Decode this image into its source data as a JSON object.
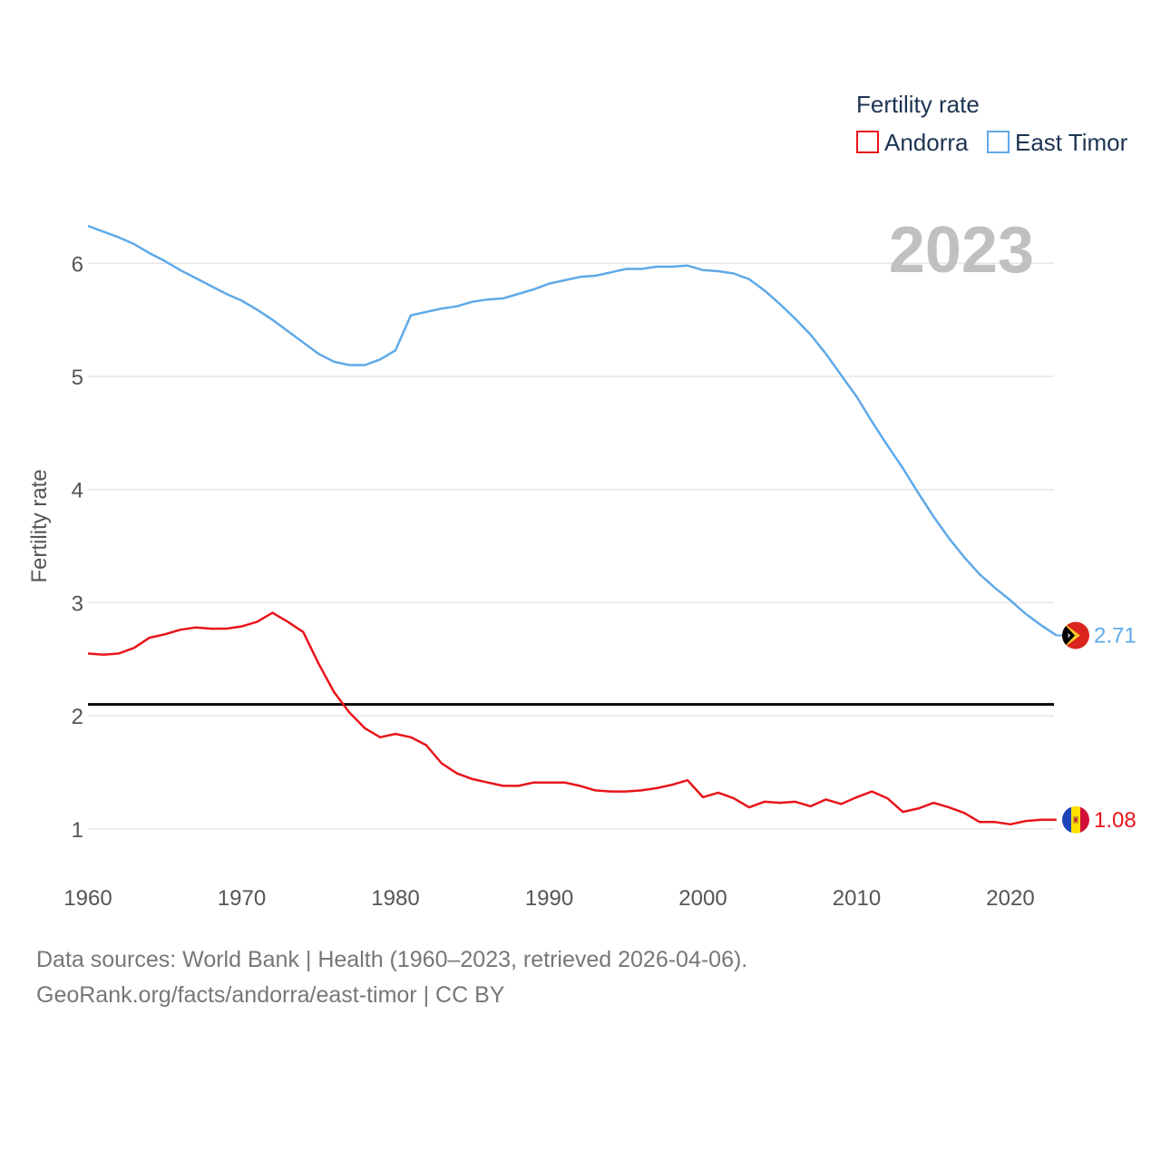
{
  "legend": {
    "title": "Fertility rate",
    "items": [
      {
        "label": "Andorra",
        "color": "#e8141b"
      },
      {
        "label": "East Timor",
        "color": "#5ea9e8"
      }
    ]
  },
  "year_label": "2023",
  "axis": {
    "ylabel": "Fertility rate",
    "yticks": [
      "1",
      "2",
      "3",
      "4",
      "5",
      "6"
    ],
    "xticks": [
      "1960",
      "1970",
      "1980",
      "1990",
      "2000",
      "2010",
      "2020"
    ]
  },
  "end_labels": {
    "east_timor": "2.71",
    "andorra": "1.08"
  },
  "footer": {
    "line1": "Data sources: World Bank | Health (1960–2023, retrieved 2026-04-06).",
    "line2": "GeoRank.org/facts/andorra/east-timor | CC BY"
  },
  "chart_data": {
    "type": "line",
    "title": "Fertility rate",
    "xlabel": "",
    "ylabel": "Fertility rate",
    "xlim": [
      1960,
      2023
    ],
    "ylim": [
      0.6,
      6.6
    ],
    "reference_line": 2.1,
    "x": [
      1960,
      1961,
      1962,
      1963,
      1964,
      1965,
      1966,
      1967,
      1968,
      1969,
      1970,
      1971,
      1972,
      1973,
      1974,
      1975,
      1976,
      1977,
      1978,
      1979,
      1980,
      1981,
      1982,
      1983,
      1984,
      1985,
      1986,
      1987,
      1988,
      1989,
      1990,
      1991,
      1992,
      1993,
      1994,
      1995,
      1996,
      1997,
      1998,
      1999,
      2000,
      2001,
      2002,
      2003,
      2004,
      2005,
      2006,
      2007,
      2008,
      2009,
      2010,
      2011,
      2012,
      2013,
      2014,
      2015,
      2016,
      2017,
      2018,
      2019,
      2020,
      2021,
      2022,
      2023
    ],
    "series": [
      {
        "name": "Andorra",
        "color": "#e8141b",
        "values": [
          2.55,
          2.54,
          2.55,
          2.6,
          2.69,
          2.72,
          2.76,
          2.78,
          2.77,
          2.77,
          2.79,
          2.83,
          2.91,
          2.83,
          2.74,
          2.46,
          2.21,
          2.03,
          1.89,
          1.81,
          1.84,
          1.81,
          1.74,
          1.58,
          1.49,
          1.44,
          1.41,
          1.38,
          1.38,
          1.41,
          1.41,
          1.41,
          1.38,
          1.34,
          1.33,
          1.33,
          1.34,
          1.36,
          1.39,
          1.43,
          1.28,
          1.32,
          1.27,
          1.19,
          1.24,
          1.23,
          1.24,
          1.2,
          1.26,
          1.22,
          1.28,
          1.33,
          1.27,
          1.15,
          1.18,
          1.23,
          1.19,
          1.14,
          1.06,
          1.06,
          1.04,
          1.07,
          1.08,
          1.08
        ]
      },
      {
        "name": "East Timor",
        "color": "#5ea9e8",
        "values": [
          6.33,
          6.28,
          6.23,
          6.17,
          6.09,
          6.02,
          5.94,
          5.87,
          5.8,
          5.73,
          5.67,
          5.59,
          5.5,
          5.4,
          5.3,
          5.2,
          5.13,
          5.1,
          5.1,
          5.15,
          5.23,
          5.54,
          5.57,
          5.6,
          5.62,
          5.66,
          5.68,
          5.69,
          5.73,
          5.77,
          5.82,
          5.85,
          5.88,
          5.89,
          5.92,
          5.95,
          5.95,
          5.97,
          5.97,
          5.98,
          5.94,
          5.93,
          5.91,
          5.86,
          5.76,
          5.64,
          5.51,
          5.37,
          5.2,
          5.01,
          4.82,
          4.6,
          4.39,
          4.19,
          3.97,
          3.76,
          3.57,
          3.4,
          3.25,
          3.13,
          3.02,
          2.9,
          2.8,
          2.71
        ]
      }
    ]
  }
}
